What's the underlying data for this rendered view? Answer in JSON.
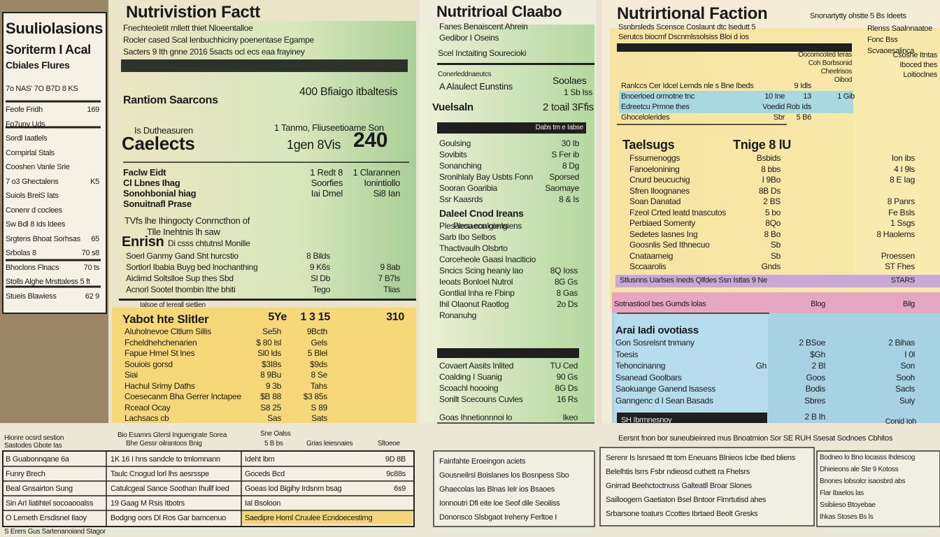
{
  "left_label": {
    "title": "Suuliolasions",
    "subtitle": "Soriterm I Acal",
    "caption": "Cbiales Flures",
    "header": "7o NAS' 7O B7D 8 KS",
    "rows": [
      [
        "Feofe Fridh",
        "169"
      ],
      [
        "Fo7uny Uds"
      ],
      [
        "Sordl Iaatlels"
      ],
      [
        "Cornpirlal Stals"
      ],
      [
        "Cooshen Vanle Srie"
      ],
      [
        "7 o3 Ghectalens",
        "K5"
      ],
      [
        "Suiols BreiS Iats"
      ],
      [
        "Conenr d coclees"
      ],
      [
        "Sw Bdl 8 Ids ldees"
      ],
      [
        "Srgtens Bhoat Sorhsas",
        "65"
      ],
      [
        "Srbolas 8",
        "70 s8"
      ],
      [
        "Bhoclons Flnacs",
        "70 ts"
      ],
      [
        "Stolls Alghe Mrsttaless 5 ft"
      ],
      [
        "Stueis Blawiess",
        "62 9"
      ]
    ]
  },
  "panel_a": {
    "title": "Nutrivistion Factt",
    "intro": [
      "Fnechteoletit rnllett thiet Nloeentalloe",
      "Rocler cased Scal Ienbuchhiciny poenentase Egampe",
      "Sacters 9 Ith gnne 2016 5sacts ocl ecs eaa frayiney"
    ],
    "serving": "Rantiom Saarcons",
    "serving_value": "400 Bfiaigo itbaltesis",
    "calories_note": "Is Dutheasuren",
    "calories_label": "Caelects",
    "calories_head": "1 Tanmo, Fliuseetioame Son",
    "calories_unit": "1gen 8Vis",
    "calories_value": "240",
    "rows": [
      [
        "Faclw Eidt",
        "1 Redt 8",
        "1 Clarannen"
      ],
      [
        "Cl Lbnes Ihag",
        "Soorfies",
        "Ionintiollo"
      ],
      [
        "Sonohbonial hiag",
        "Iai Dmel",
        "Si8 Ian"
      ],
      [
        "Sonuitnafl Prase"
      ]
    ],
    "note": "TVfs lhe Ihingocty Conrncthon of",
    "note2": "Tlle Inehtnis lh saw",
    "section": "Enrisn",
    "section_note": "Di csss chtutnsl Monille",
    "rows2": [
      [
        "Soerl Ganmy Gand Sht hurcstio",
        "8 Bilds"
      ],
      [
        "Sortlorl Ibabia Buyg bed lnochanthing",
        "9 K6s",
        "9 8ab"
      ],
      [
        "Aiclimd Soltslloe Sup thes Sbd",
        "Sl Db",
        "7 B7ls"
      ],
      [
        "Acnorl Sootel thombin Ithe bhiti",
        "Tego",
        "Tlias"
      ]
    ],
    "footnote": "Ialsoe of Iereall sietlien",
    "yellow_title": "Yabot hte Slitler",
    "yellow_heads": [
      "5Ye",
      "1 3 15",
      "310"
    ],
    "yellow_rows": [
      [
        "Aluholnevoe Cltlum Sillis",
        "Se5h",
        "9Bcth"
      ],
      [
        "Fcheldhehchenarien",
        "$ 80 lsl",
        "Gels"
      ],
      [
        "Fapue Hrnel St lnes",
        "Sl0 lds",
        "5 Blel"
      ],
      [
        "Souiois gorsd",
        "$3I8s",
        "$9ds"
      ],
      [
        "Siai",
        "8 9Bu",
        "8 Se"
      ],
      [
        "Hachul Srimy Daths",
        "9 3b",
        "Tahs"
      ],
      [
        "Coesecanm Bha Gerrer lnctapee",
        "$B 88",
        "$3 85s"
      ],
      [
        "Rceaol Ocay",
        "S8 25",
        "S 89"
      ],
      [
        "Lachsacs cb",
        "Sas",
        "Sats"
      ]
    ]
  },
  "panel_m": {
    "title": "Nutritrioal Claabo",
    "intro": [
      "Fanes Benaiscent Ahrein",
      "Gedibor I Oseins"
    ],
    "sub": "Scel Inctaiting Sourecioki",
    "head_small": "Conerleddnaeutcs",
    "head": "A Alaulect Eunstins",
    "head_value": "Soolaes",
    "head_value2": "1 Sb Iss",
    "vit": "Vuelsaln",
    "vit_value": "2 toail 3Ffis",
    "bar": "Dabs tm e Iabse",
    "rows": [
      [
        "Goulsing",
        "30 Ib"
      ],
      [
        "Sovibits",
        "S Fer ib"
      ],
      [
        "Sonanching",
        "8 Dg"
      ],
      [
        "Sronihlaly Bay Usbts Fonn",
        "Sporsed"
      ],
      [
        "Sooran Goaribia",
        "Saomaye"
      ],
      [
        "Ssr Kaasrds",
        "8 & Is"
      ]
    ],
    "sec2": "Daleel Cnod Ireans",
    "rows2": [
      [
        "Plesaecu conlgiens"
      ],
      [
        "Sarb Ibo Selbos"
      ],
      [
        "Thactivaulh Olsbrto"
      ],
      [
        "Corceheole Gaasi Inaciticio"
      ],
      [
        "Sncics Scing heaniy lao",
        "8Q Ioss"
      ],
      [
        "Ieoats Bonloel Nutrol",
        "8G Gs"
      ],
      [
        "Gontlial lnha re Fbinp",
        "8 Gas"
      ],
      [
        "Ihil Olaonut Raotlog",
        "2o Ds"
      ],
      [
        "Ronanuhg"
      ]
    ],
    "rows3": [
      [
        "Covaert Aasits Inlited",
        "TU Ced"
      ],
      [
        "Coalding I Suanig",
        "90 Gs"
      ],
      [
        "Scoachl hoooing",
        "8G Ds"
      ],
      [
        "Sonllt Scecouns Cuvles",
        "16 Rs"
      ]
    ],
    "foot": "Goas Ihnetionnnoi lo",
    "foot_value": "Ikeo"
  },
  "panel_r": {
    "title": "Nutrirtional Faction",
    "title_note": "Snonartytty ohstte 5 Bs Ideets",
    "intro": [
      "Ssnbrsleds Scensce Coslaunt dtc lsedutt 5",
      "Serutcs biocmf Dscnmlssolsiss Bloi d ios"
    ],
    "side": [
      "Rlenss Saalnnaatoe",
      "Fonc Bss",
      "Scvaoesalinca"
    ],
    "mid": [
      "Oocomcoted teras",
      "Coh Borbsonid",
      "Cheelrisos",
      "Oibod"
    ],
    "mid_right": [
      "Csoshe Itntas",
      "Iboced thes",
      "Loitioclnes"
    ],
    "blue": [
      [
        "Ranlccs Cer Idcel Lemds nle s Bne Ibeds",
        "",
        "9 Idls"
      ],
      [
        "Bnoerloed ormotne tnc",
        "10 Ine",
        "13",
        "1 Gib"
      ],
      [
        "Edreetcu Prmne thes",
        "Voedid",
        "Rob Ids"
      ],
      [
        "Ghocelolerides",
        "Sbr",
        "5 B6"
      ]
    ],
    "bold_head": "Taelsugs",
    "bold_head_value": "Tnige 8 lU",
    "rows": [
      [
        "Fssumenoggs",
        "Bsbids",
        "Ion ibs"
      ],
      [
        "Fanoelonining",
        "8 bbs",
        "4 I 9ls"
      ],
      [
        "Cnurd beucuchig",
        "I 9Bo",
        "8 E Iag"
      ],
      [
        "Sfren Iloognanes",
        "8B Ds"
      ],
      [
        "Soan Danatad",
        "2 BS",
        "8 Panrs"
      ],
      [
        "Fzeol Crted leatd tnascutos",
        "5 bo",
        "Fe Bsls"
      ],
      [
        "Perbiaed Somenty",
        "8Qo",
        "1 Ssgs"
      ],
      [
        "Sedetes Iasnes Ing",
        "8 Bo",
        "8 Haolems"
      ],
      [
        "Goosnlis Sed Ithnecuo",
        "Sb"
      ],
      [
        "Cnataarneig",
        "Sb",
        "Proessen"
      ],
      [
        "Sccaarolis",
        "Gnds",
        "ST Fhes"
      ]
    ],
    "stripe": "Stlusnns Uarlses Ineds Qlfdes Ssn Istlas 9 Ne",
    "stripe_value": "STARS",
    "pink": "Sotnastiool bes Gumds lolas",
    "pink_value": "Blog",
    "pink_value2": "Bilg",
    "blue_title": "Arai Iadi ovotiass",
    "blue_rows": [
      [
        "Gon Sosrelsnt tnmany",
        "2 BSoe",
        "2 Bihas"
      ],
      [
        "Toesis",
        "$Gh",
        "I 0l"
      ],
      [
        "Tehoncinanng",
        "2 Bl",
        "Son",
        "Gh"
      ],
      [
        "Ssanead Goolbars",
        "Goos",
        "Sooh"
      ],
      [
        "Saokuange Ganend lsasess",
        "Bodis",
        "Sacls"
      ],
      [
        "Ganngenc d I Sean Basads",
        "Sbres",
        "Suiy"
      ]
    ],
    "dark": "SH Ibrrnnesnoy",
    "dark_value": "2 B Ih",
    "dark_value2": "Conid Ioh"
  },
  "bottom": {
    "left_head": [
      "Hionre ocsrd sestion",
      "Bio Esarnrs Gtersl Inguengrate Sorea",
      "Sne Oalss",
      "Grias leiesnaies"
    ],
    "left_head2": [
      "Sastodes Gbote Ias",
      "Bhe Gessr oilrantoos Bnig",
      "5 B bs",
      "Sltoeoe"
    ],
    "left_rows": [
      [
        "B Guabonnqane 6a",
        "1K 16 I hns sandcle to tmlomnann",
        "Ideht lbm",
        "9D 8B"
      ],
      [
        "Funry Brech",
        "Taulc Cnogud lorl lhs aesrsspe",
        "Goceds Bcd",
        "9c88s"
      ],
      [
        "Beal Gnsairton Sung",
        "Catulcgeal Sance Soothan Ihullf loed",
        "Goeas lod Bigihy Irdsnm bsag",
        "6s9"
      ],
      [
        "Sin ArI liatihtel socoaooalss",
        "19 Gaag M Rsis Itbotrs",
        "Ial Bsoloon"
      ],
      [
        "O Lemeth Ersdisnel Ilaoy",
        "Bodgng oors Dl Ros Gar bamcenuo",
        "Saedipre Homl Cruulee Ecndoecestirng"
      ]
    ],
    "left_foot": "S Erers Gus Sartenanoiand Stagor",
    "mid_rows": [
      "Fainfahte Eroeingon aciets",
      "Gousneilrsl Boislanes los Bosnpess Sbo",
      "Ghaecolas las Blnas Ielr ios Bsaoes",
      "Ionnoutri Dfi eite loe Seof dile Seoiliss",
      "Dononsco Slsbgaot Ireheny Ferltoe I"
    ],
    "right_head": "Eersnt fnon bor suneubieinred mus Bnoatmion Sor SE RUH Ssesat Sodnoes Cbhitos",
    "right_rows": [
      "Serenr Is lsnrsaed ttt tom Eneuans Blnieos Icbe Ibed bliens",
      "Belelhtis lsrrs Fsbr ndieosd cuthett ra Fhelsrs",
      "Gnirrad Beehctoctnuss Galteatll Broar Slones",
      "Sailloogern Gaetiaton Bsel Bntoor Flmrtutisd ahes",
      "Srbarsone toaturs Ccottes Ibrtaed Beolt Gresks"
    ],
    "far_rows": [
      "Bodneo lo Bno locasss Ihdescog",
      "Dhieieons ale Ste 9 Kotoss",
      "Bnones lobsolcr isaosbrd abs",
      "Flar Ibaelos las",
      "Ssibiieso Btoyebae",
      "Ihkas Stoses Bs ls"
    ]
  }
}
